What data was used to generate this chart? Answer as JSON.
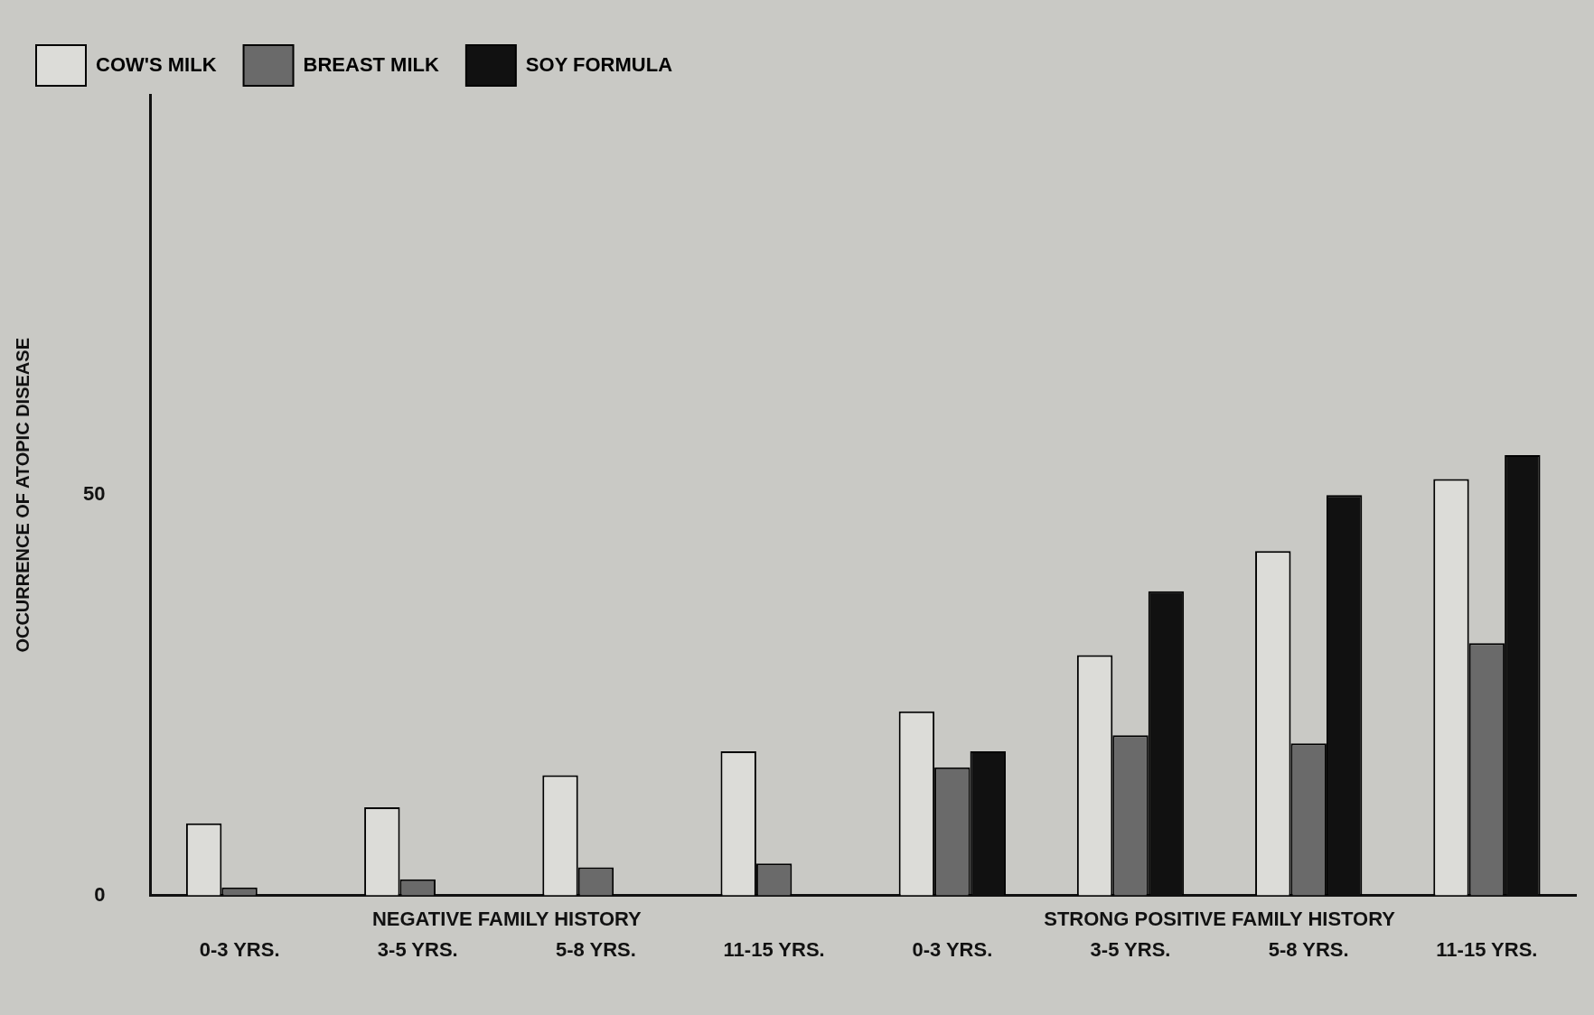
{
  "chart_data": {
    "type": "bar",
    "ylabel": "OCCURRENCE OF ATOPIC DISEASE",
    "categories": [
      "0-3 YRS.",
      "3-5 YRS.",
      "5-8 YRS.",
      "11-15 YRS.",
      "0-3 YRS.",
      "3-5 YRS.",
      "5-8 YRS.",
      "11-15 YRS."
    ],
    "series": [
      {
        "name": "COW'S MILK",
        "color": "#dcdcd8",
        "values": [
          9,
          11,
          15,
          18,
          23,
          30,
          43,
          52
        ]
      },
      {
        "name": "BREAST MILK",
        "color": "#6a6a6a",
        "values": [
          1,
          2,
          3.5,
          4,
          16,
          20,
          19,
          31.5
        ]
      },
      {
        "name": "SOY FORMULA",
        "color": "#111111",
        "values": [
          null,
          null,
          null,
          null,
          18,
          38,
          50,
          55
        ]
      }
    ],
    "ylim": [
      0,
      100
    ],
    "yticks": [
      0,
      50
    ],
    "grid": false,
    "legend": "top left",
    "annotations": [
      "NEGATIVE FAMILY HISTORY",
      "STRONG POSITIVE FAMILY HISTORY"
    ]
  }
}
